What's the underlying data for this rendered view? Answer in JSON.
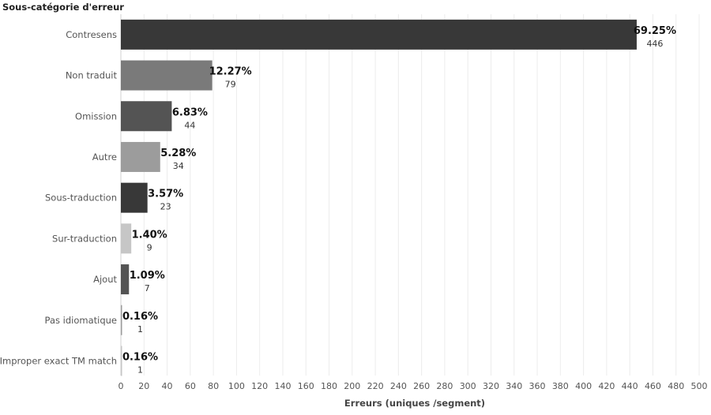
{
  "chart_data": {
    "type": "bar",
    "orientation": "horizontal",
    "row_header": "Sous-catégorie d'erreur",
    "xlabel": "Erreurs (uniques /segment)",
    "xlim": [
      0,
      500
    ],
    "x_ticks": [
      0,
      20,
      40,
      60,
      80,
      100,
      120,
      140,
      160,
      180,
      200,
      220,
      240,
      260,
      280,
      300,
      320,
      340,
      360,
      380,
      400,
      420,
      440,
      460,
      480,
      500
    ],
    "grid": "vertical",
    "legend": "none",
    "categories": [
      "Contresens",
      "Non traduit",
      "Omission",
      "Autre",
      "Sous-traduction",
      "Sur-traduction",
      "Ajout",
      "Pas idiomatique",
      "Improper exact TM match"
    ],
    "values": [
      446,
      79,
      44,
      34,
      23,
      9,
      7,
      1,
      1
    ],
    "percent_labels": [
      "69.25%",
      "12.27%",
      "6.83%",
      "5.28%",
      "3.57%",
      "1.40%",
      "1.09%",
      "0.16%",
      "0.16%"
    ],
    "bar_colors": [
      "#383838",
      "#7a7a7a",
      "#545454",
      "#9c9c9c",
      "#383838",
      "#c6c6c6",
      "#545454",
      "#9c9c9c",
      "#c6c6c6"
    ]
  }
}
